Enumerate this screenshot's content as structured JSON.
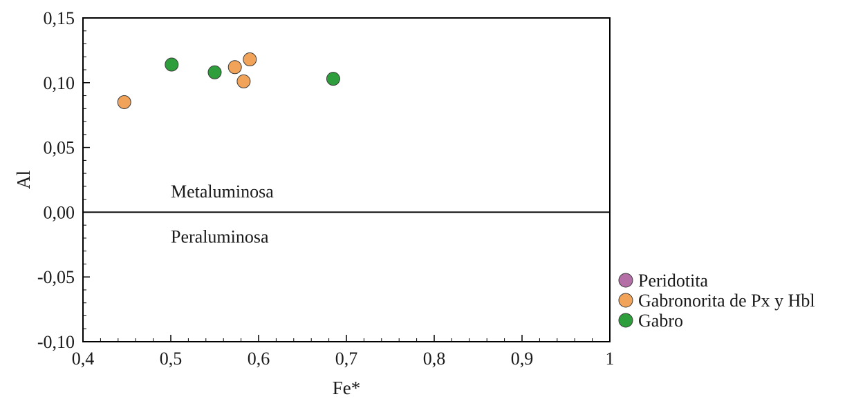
{
  "chart_data": {
    "type": "scatter",
    "title": "",
    "xlabel": "Fe*",
    "ylabel": "Al",
    "xlim": [
      0.4,
      1.0
    ],
    "ylim": [
      -0.1,
      0.15
    ],
    "x_ticks": [
      0.4,
      0.5,
      0.6,
      0.7,
      0.8,
      0.9,
      1.0
    ],
    "x_tick_labels": [
      "0,4",
      "0,5",
      "0,6",
      "0,7",
      "0,8",
      "0,9",
      "1"
    ],
    "y_ticks": [
      -0.1,
      -0.05,
      0.0,
      0.05,
      0.1,
      0.15
    ],
    "y_tick_labels": [
      "-0,10",
      "-0,05",
      "0,00",
      "0,05",
      "0,10",
      "0,15"
    ],
    "grid": false,
    "legend_position": "right-bottom, outside plot",
    "reference_line": {
      "y": 0.0
    },
    "annotations": [
      {
        "text": "Metaluminosa",
        "x": 0.5,
        "y": 0.014
      },
      {
        "text": "Peraluminosa",
        "x": 0.5,
        "y": -0.014
      }
    ],
    "series": [
      {
        "name": "Peridotita",
        "color": "#b46fa6",
        "points": []
      },
      {
        "name": "Gabronorita de Px y Hbl",
        "color": "#f2a35a",
        "points": [
          {
            "x": 0.447,
            "y": 0.085
          },
          {
            "x": 0.573,
            "y": 0.112
          },
          {
            "x": 0.583,
            "y": 0.101
          },
          {
            "x": 0.59,
            "y": 0.118
          }
        ]
      },
      {
        "name": "Gabro",
        "color": "#2e9e3c",
        "points": [
          {
            "x": 0.501,
            "y": 0.114
          },
          {
            "x": 0.55,
            "y": 0.108
          },
          {
            "x": 0.685,
            "y": 0.103
          }
        ]
      }
    ]
  }
}
